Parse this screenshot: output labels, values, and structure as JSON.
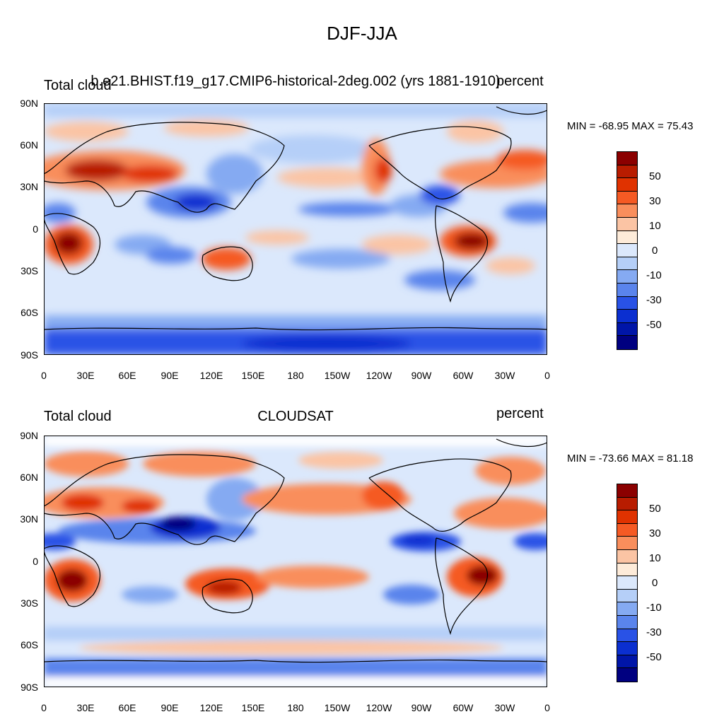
{
  "figure": {
    "title": "DJF-JJA"
  },
  "panels": [
    {
      "left_title": "Total cloud",
      "center_title": "b.e21.BHIST.f19_g17.CMIP6-historical-2deg.002 (yrs 1881-1910)",
      "right_title": "percent",
      "minmax": "MIN = -68.95 MAX =  75.43"
    },
    {
      "left_title": "Total cloud",
      "center_title": "CLOUDSAT",
      "right_title": "percent",
      "minmax": "MIN = -73.66 MAX =  81.18"
    }
  ],
  "axes": {
    "lat_labels": [
      "90N",
      "60N",
      "30N",
      "0",
      "30S",
      "60S",
      "90S"
    ],
    "lon_labels": [
      "0",
      "30E",
      "60E",
      "90E",
      "120E",
      "150E",
      "180",
      "150W",
      "120W",
      "90W",
      "60W",
      "30W",
      "0"
    ]
  },
  "colorbar": {
    "labels": [
      "50",
      "30",
      "10",
      "0",
      "-10",
      "-30",
      "-50"
    ],
    "colors": [
      "#8b0000",
      "#b81c00",
      "#e03200",
      "#f55a24",
      "#f98e5c",
      "#fbc4a4",
      "#fdebd9",
      "#dbe8fc",
      "#b5cff8",
      "#85aaf2",
      "#5a84ec",
      "#2952e6",
      "#0b2fd0",
      "#0015a8",
      "#000080"
    ]
  },
  "colors": {
    "land_outline": "#000000",
    "ocean_base": "#dbe8fc",
    "positive": "#e03200",
    "negative": "#0b2fd0"
  }
}
